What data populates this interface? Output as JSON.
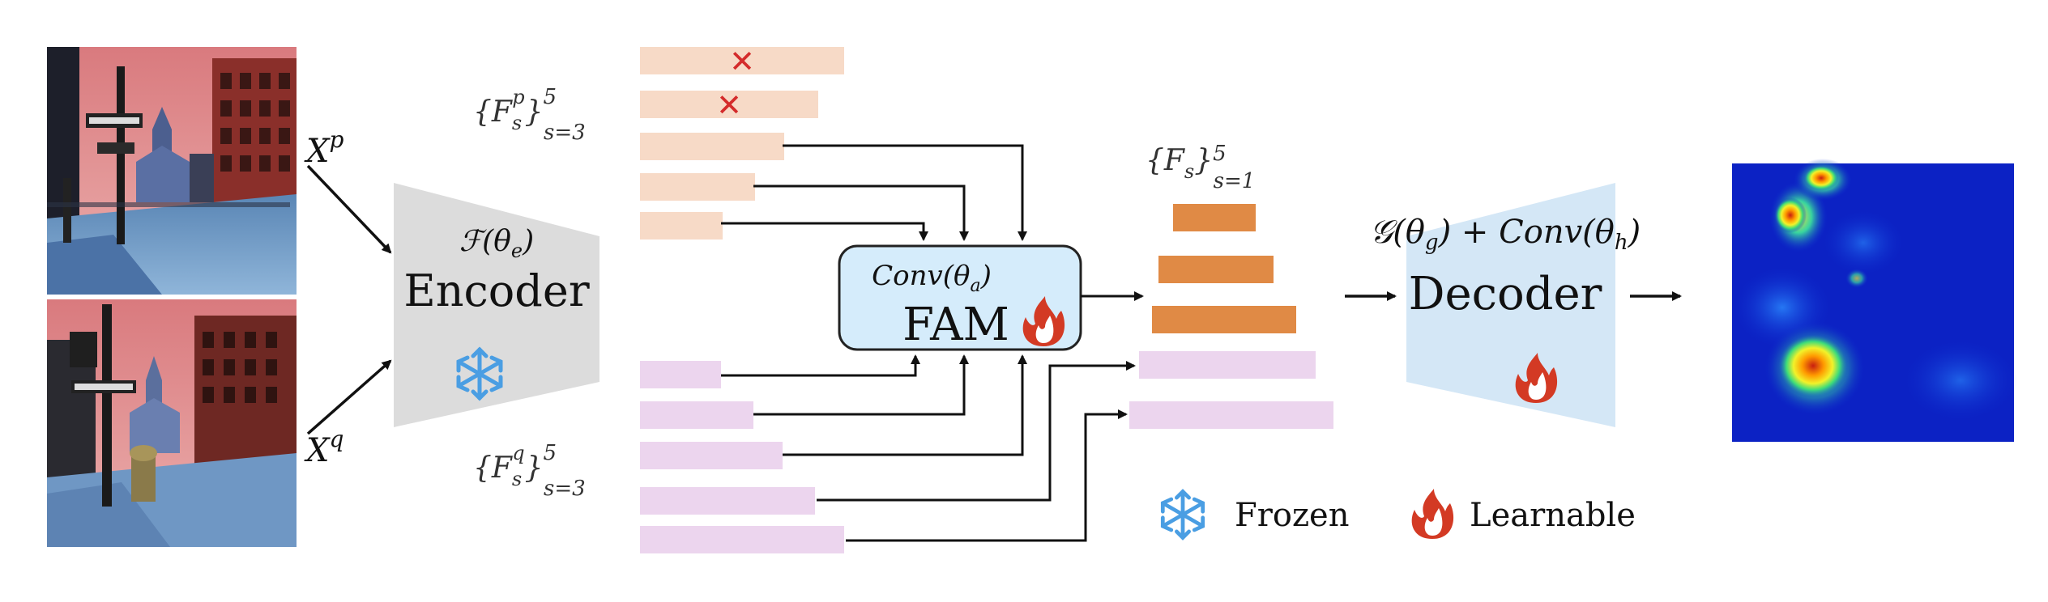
{
  "inputs": {
    "image_p_label": "X",
    "image_p_sup": "p",
    "image_q_label": "X",
    "image_q_sup": "q"
  },
  "encoder": {
    "function": "ℱ(θ",
    "function_sub": "e",
    "function_close": ")",
    "label": "Encoder",
    "state_icon": "snowflake-icon"
  },
  "feature_sets": {
    "p_set": {
      "base": "F",
      "sub": "s",
      "sup_var": "p",
      "sup": "5",
      "lower": "s=3"
    },
    "q_set": {
      "base": "F",
      "sub": "s",
      "sup_var": "q",
      "sup": "5",
      "lower": "s=3"
    },
    "fused_set": {
      "base": "F",
      "sub": "s",
      "sup": "5",
      "lower": "s=1"
    },
    "p_levels": 5,
    "p_discarded": 2,
    "q_levels": 5,
    "fused_levels": 5,
    "discard_mark": "✕"
  },
  "fam": {
    "conv": "Conv(θ",
    "conv_sub": "a",
    "conv_close": ")",
    "label": "FAM",
    "state_icon": "flame-icon"
  },
  "decoder": {
    "function": "𝒢(θ",
    "function_sub": "g",
    "function_mid": ") + Conv(θ",
    "function_sub2": "h",
    "function_close": ")",
    "label": "Decoder",
    "state_icon": "flame-icon"
  },
  "legend": {
    "frozen_label": "Frozen",
    "learnable_label": "Learnable"
  },
  "colors": {
    "p_feature": "#f7dac7",
    "q_feature": "#ecd5ee",
    "fused_feature": "#e08a45",
    "encoder_fill": "#dcdcdc",
    "decoder_fill": "#d4e7f6",
    "fam_fill": "#d5ecfb",
    "snowflake": "#4a9ee3",
    "flame": "#d33a24",
    "cross": "#d42b2b"
  }
}
